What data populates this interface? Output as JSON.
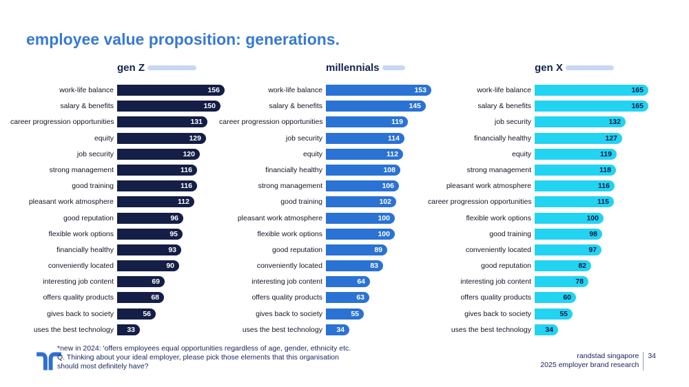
{
  "title": "employee value proposition: generations.",
  "chart_data": [
    {
      "type": "bar",
      "title": "gen Z",
      "bar_color": "#141e46",
      "value_color": "#ffffff",
      "categories": [
        "work-life balance",
        "salary & benefits",
        "career progression opportunities",
        "equity",
        "job security",
        "strong management",
        "good training",
        "pleasant work atmosphere",
        "good reputation",
        "flexible work options",
        "financially healthy",
        "conveniently located",
        "interesting job content",
        "offers quality products",
        "gives back to society",
        "uses the best technology"
      ],
      "values": [
        156,
        150,
        131,
        129,
        120,
        116,
        116,
        112,
        96,
        95,
        93,
        90,
        69,
        68,
        56,
        33
      ],
      "xlim": [
        0,
        170
      ],
      "legend": "none",
      "grid": false
    },
    {
      "type": "bar",
      "title": "millennials",
      "bar_color": "#2a72d4",
      "value_color": "#ffffff",
      "categories": [
        "work-life balance",
        "salary & benefits",
        "career progression opportunities",
        "job security",
        "equity",
        "financially healthy",
        "strong management",
        "good training",
        "pleasant work atmosphere",
        "flexible work options",
        "good reputation",
        "conveniently located",
        "interesting job content",
        "offers quality products",
        "gives back to society",
        "uses the best technology"
      ],
      "values": [
        153,
        145,
        119,
        114,
        112,
        108,
        106,
        102,
        100,
        100,
        89,
        83,
        64,
        63,
        55,
        34
      ],
      "xlim": [
        0,
        170
      ],
      "legend": "none",
      "grid": false
    },
    {
      "type": "bar",
      "title": "gen X",
      "bar_color": "#22d3f2",
      "value_color": "#0d1b3e",
      "categories": [
        "work-life balance",
        "salary & benefits",
        "job security",
        "financially healthy",
        "equity",
        "strong management",
        "pleasant work atmosphere",
        "career progression opportunities",
        "flexible work options",
        "good training",
        "conveniently located",
        "good reputation",
        "interesting job content",
        "offers quality products",
        "gives back to society",
        "uses the best technology"
      ],
      "values": [
        165,
        165,
        132,
        127,
        119,
        118,
        116,
        115,
        100,
        98,
        97,
        82,
        78,
        60,
        55,
        34
      ],
      "xlim": [
        0,
        170
      ],
      "legend": "none",
      "grid": false
    }
  ],
  "footnote": {
    "line1": "*new in 2024:  'offers employees equal opportunities regardless of age, gender, ethnicity etc.",
    "line2": "Q. Thinking about your ideal employer, please pick those elements that this organisation",
    "line3": "should most definitely have?"
  },
  "source": {
    "line1": "randstad singapore",
    "line2": "2025 employer brand research",
    "page": "34"
  },
  "colors": {
    "title_blue": "#3779d6",
    "header_navy": "#13224d",
    "header_pill": "#c7d8f1",
    "logo_blue": "#2e6fd2",
    "gen_z_bar": "#141e46",
    "millennials_bar": "#2a72d4",
    "gen_x_bar": "#22d3f2"
  },
  "icons": {
    "logo": "randstad-logo"
  }
}
